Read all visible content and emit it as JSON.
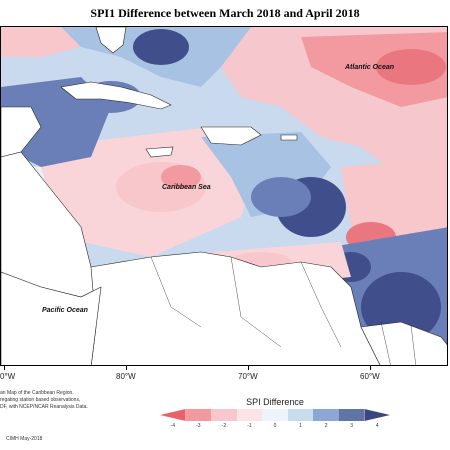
{
  "title": "SPI1 Difference between March 2018 and April 2018",
  "labels": {
    "atlantic": "Atlantic Ocean",
    "caribbean": "Caribbean Sea",
    "pacific": "Pacific Ocean"
  },
  "longitude_ticks": [
    "0°W",
    "80°W",
    "70°W",
    "60°W"
  ],
  "footnote": "an Map of the Caribbean Region.\nregating station based observations,\nDF, with NCEP/NCAR Reanalysis Data.",
  "credit": "CIMH May-2018",
  "legend": {
    "title": "SPI Difference",
    "ticks": [
      "-4",
      "-3",
      "-2",
      "-1",
      "0",
      "1",
      "2",
      "3",
      "4"
    ],
    "colors": [
      "#e8616b",
      "#f29aa0",
      "#f7c7cc",
      "#fbe3e7",
      "#eef5fa",
      "#c7dcec",
      "#8ea6d6",
      "#6273a8",
      "#3b4581"
    ]
  },
  "colors": {
    "land": "#ffffff",
    "coast": "#222222",
    "strong_dry": "#f29aa0",
    "mild_dry": "#f9d5da",
    "neutral": "#e9f1f6",
    "mild_wet": "#a7c2e2",
    "wet": "#6a7fb7",
    "strong_wet": "#414e8c"
  }
}
